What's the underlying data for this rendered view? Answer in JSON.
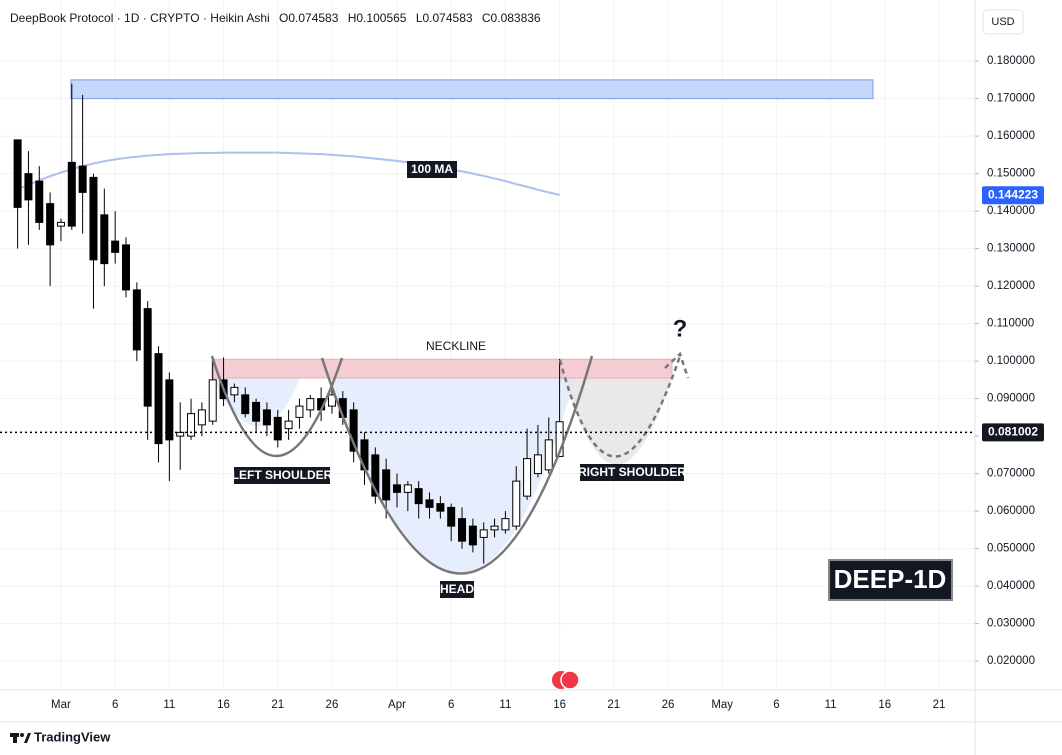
{
  "chart_data": {
    "type": "candlestick",
    "title": "DeepBook Protocol · 1D · CRYPTO · Heikin Ashi",
    "header_values": [
      "O0.074583",
      "H0.100565",
      "L0.074583",
      "C0.083836"
    ],
    "currency": "USD",
    "brand": "TradingView",
    "symbol_badge": "DEEP-1D",
    "annotations": {
      "neckline": "NECKLINE",
      "left_shoulder": "LEFT SHOULDER",
      "head": "HEAD",
      "right_shoulder": "RIGHT SHOULDER",
      "question": "?"
    },
    "up_color": "#ffffff",
    "down_color": "#000000",
    "categories": [
      null,
      null,
      null,
      null,
      "Mar",
      null,
      null,
      null,
      null,
      "6",
      null,
      null,
      null,
      null,
      "11",
      null,
      null,
      null,
      null,
      "16",
      null,
      null,
      null,
      null,
      "21",
      null,
      null,
      null,
      null,
      "26",
      null,
      null,
      null,
      null,
      null,
      "Apr",
      null,
      null,
      null,
      null,
      "6",
      null,
      null,
      null,
      null,
      "11",
      null,
      null,
      null,
      null,
      "16",
      null,
      null,
      null,
      null,
      "21",
      null,
      null,
      null,
      null,
      "26",
      null,
      null,
      null,
      null,
      "May",
      null,
      null,
      null,
      null,
      "6",
      null,
      null,
      null,
      null,
      "11",
      null,
      null,
      null,
      null,
      "16",
      null,
      null,
      null,
      null,
      "21",
      null,
      null,
      null
    ],
    "open": [
      0.159,
      0.15,
      0.148,
      0.142,
      0.136,
      0.153,
      0.152,
      0.149,
      0.139,
      0.132,
      0.131,
      0.119,
      0.114,
      0.102,
      0.095,
      0.08,
      0.08,
      0.083,
      0.084,
      0.095,
      0.091,
      0.091,
      0.089,
      0.087,
      0.085,
      0.082,
      0.085,
      0.087,
      0.09,
      0.088,
      0.09,
      0.087,
      0.079,
      0.075,
      0.071,
      0.067,
      0.065,
      0.066,
      0.063,
      0.062,
      0.061,
      0.058,
      0.056,
      0.053,
      0.055,
      0.055,
      0.056,
      0.064,
      0.07,
      0.071,
      0.074583,
      null,
      null,
      null,
      null,
      null,
      null,
      null,
      null,
      null,
      null,
      null,
      null,
      null,
      null,
      null,
      null,
      null,
      null,
      null,
      null,
      null,
      null,
      null,
      null,
      null,
      null,
      null,
      null,
      null,
      null,
      null,
      null,
      null,
      null,
      null,
      null,
      null,
      null
    ],
    "high": [
      0.159,
      0.156,
      0.152,
      0.145,
      0.138,
      0.174,
      0.171,
      0.15,
      0.146,
      0.14,
      0.133,
      0.121,
      0.116,
      0.104,
      0.097,
      0.089,
      0.09,
      0.089,
      0.1,
      0.101,
      0.094,
      0.093,
      0.09,
      0.089,
      0.087,
      0.087,
      0.09,
      0.091,
      0.093,
      0.093,
      0.092,
      0.089,
      0.081,
      0.077,
      0.074,
      0.07,
      0.068,
      0.068,
      0.065,
      0.064,
      0.062,
      0.061,
      0.058,
      0.057,
      0.058,
      0.06,
      0.072,
      0.082,
      0.083,
      0.085,
      0.100565,
      null,
      null,
      null,
      null,
      null,
      null,
      null,
      null,
      null,
      null,
      null,
      null,
      null,
      null,
      null,
      null,
      null,
      null,
      null,
      null,
      null,
      null,
      null,
      null,
      null,
      null,
      null,
      null,
      null,
      null,
      null,
      null,
      null,
      null,
      null,
      null,
      null,
      null
    ],
    "low": [
      0.13,
      0.131,
      0.135,
      0.12,
      0.132,
      0.135,
      0.134,
      0.114,
      0.12,
      0.126,
      0.117,
      0.1,
      0.079,
      0.073,
      0.068,
      0.071,
      0.079,
      0.08,
      0.083,
      0.088,
      0.089,
      0.085,
      0.081,
      0.08,
      0.077,
      0.079,
      0.082,
      0.085,
      0.084,
      0.086,
      0.083,
      0.073,
      0.067,
      0.062,
      0.058,
      0.061,
      0.06,
      0.058,
      0.058,
      0.058,
      0.052,
      0.05,
      0.049,
      0.046,
      0.053,
      0.054,
      0.055,
      0.063,
      0.069,
      0.07,
      0.074583,
      null,
      null,
      null,
      null,
      null,
      null,
      null,
      null,
      null,
      null,
      null,
      null,
      null,
      null,
      null,
      null,
      null,
      null,
      null,
      null,
      null,
      null,
      null,
      null,
      null,
      null,
      null,
      null,
      null,
      null,
      null,
      null,
      null,
      null,
      null,
      null,
      null,
      null
    ],
    "close": [
      0.141,
      0.143,
      0.137,
      0.131,
      0.137,
      0.136,
      0.145,
      0.127,
      0.126,
      0.129,
      0.119,
      0.103,
      0.088,
      0.078,
      0.079,
      0.081,
      0.086,
      0.087,
      0.095,
      0.09,
      0.093,
      0.086,
      0.084,
      0.083,
      0.079,
      0.084,
      0.088,
      0.09,
      0.087,
      0.091,
      0.085,
      0.076,
      0.071,
      0.064,
      0.063,
      0.065,
      0.067,
      0.062,
      0.061,
      0.06,
      0.056,
      0.052,
      0.051,
      0.055,
      0.056,
      0.058,
      0.068,
      0.074,
      0.075,
      0.079,
      0.083836,
      null,
      null,
      null,
      null,
      null,
      null,
      null,
      null,
      null,
      null,
      null,
      null,
      null,
      null,
      null,
      null,
      null,
      null,
      null,
      null,
      null,
      null,
      null,
      null,
      null,
      null,
      null,
      null,
      null,
      null,
      null,
      null,
      null,
      null,
      null,
      null,
      null,
      null
    ],
    "ma": {
      "name": "100 MA",
      "color": "#aebff0",
      "last": 0.144223,
      "values": [
        0.1458,
        0.147,
        0.1482,
        0.1493,
        0.1503,
        0.1512,
        0.152,
        0.1527,
        0.1533,
        0.1538,
        0.1542,
        0.1545,
        0.1548,
        0.155,
        0.1552,
        0.1553,
        0.1554,
        0.1555,
        0.1555,
        0.1556,
        0.1556,
        0.1556,
        0.1556,
        0.1556,
        0.1556,
        0.1555,
        0.1554,
        0.1553,
        0.1552,
        0.155,
        0.1548,
        0.1546,
        0.1543,
        0.154,
        0.1537,
        0.1534,
        0.153,
        0.1526,
        0.1521,
        0.1516,
        0.1511,
        0.1506,
        0.15,
        0.1494,
        0.1487,
        0.148,
        0.1472,
        0.1465,
        0.1457,
        0.145,
        0.1443,
        null,
        null,
        null,
        null,
        null,
        null,
        null,
        null,
        null,
        null,
        null,
        null,
        null,
        null,
        null,
        null,
        null,
        null,
        null,
        null,
        null,
        null,
        null,
        null,
        null,
        null,
        null,
        null,
        null,
        null,
        null,
        null,
        null,
        null,
        null,
        null,
        null,
        null
      ]
    },
    "last_price": 0.081002,
    "resistance_zone": [
      0.17,
      0.175
    ],
    "neckline_zone": [
      0.0955,
      0.1005
    ],
    "ylim": [
      0.0123,
      0.1963
    ],
    "yticks": [
      {
        "value": 0.18,
        "label": "0.180000"
      },
      {
        "value": 0.17,
        "label": "0.170000"
      },
      {
        "value": 0.16,
        "label": "0.160000"
      },
      {
        "value": 0.15,
        "label": "0.150000"
      },
      {
        "value": 0.14,
        "label": "0.140000"
      },
      {
        "value": 0.13,
        "label": "0.130000"
      },
      {
        "value": 0.12,
        "label": "0.120000"
      },
      {
        "value": 0.11,
        "label": "0.110000"
      },
      {
        "value": 0.1,
        "label": "0.100000"
      },
      {
        "value": 0.09,
        "label": "0.090000"
      },
      {
        "value": 0.08,
        "label": "0.080000"
      },
      {
        "value": 0.07,
        "label": "0.070000"
      },
      {
        "value": 0.06,
        "label": "0.060000"
      },
      {
        "value": 0.05,
        "label": "0.050000"
      },
      {
        "value": 0.04,
        "label": "0.040000"
      },
      {
        "value": 0.03,
        "label": "0.030000"
      },
      {
        "value": 0.02,
        "label": "0.020000"
      }
    ],
    "grid": true
  }
}
